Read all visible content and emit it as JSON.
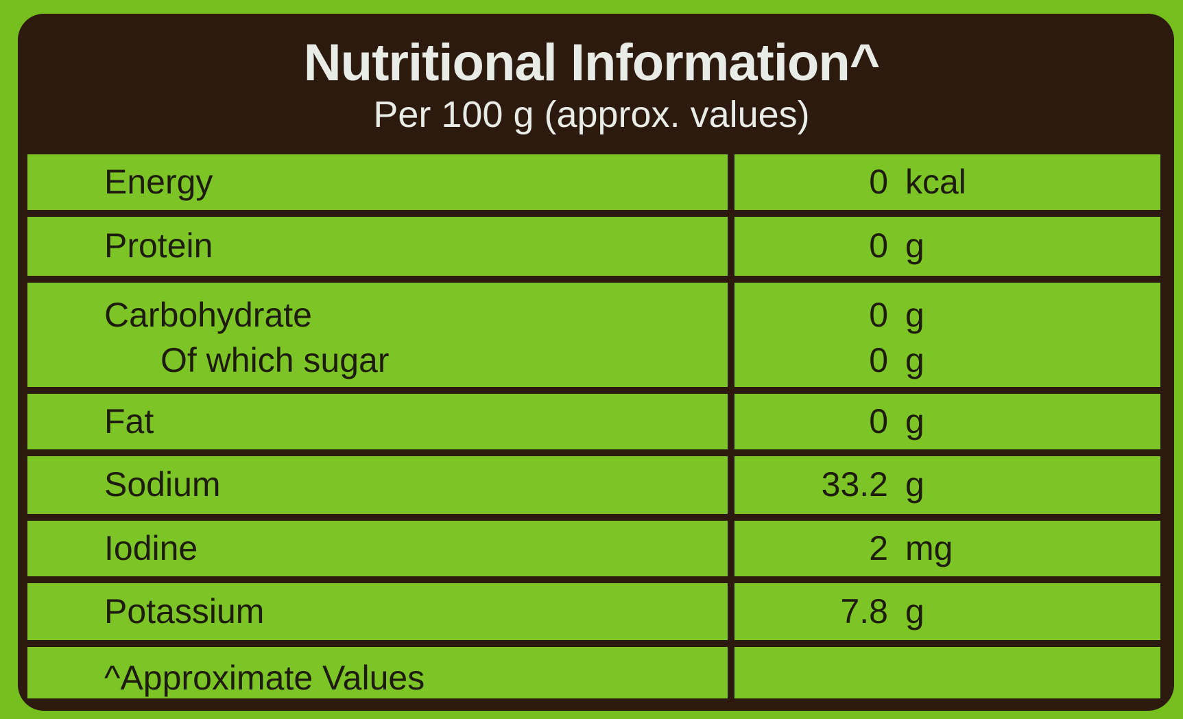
{
  "header": {
    "title": "Nutritional Information^",
    "subtitle": "Per 100 g (approx. values)"
  },
  "table": {
    "rows": [
      {
        "name": "Energy",
        "amount": 0,
        "unit": "kcal"
      },
      {
        "name": "Protein",
        "amount": 0,
        "unit": "g"
      },
      {
        "name": "Carbohydrate",
        "amount": 0,
        "unit": "g",
        "sub": {
          "name": "Of which sugar",
          "amount": 0,
          "unit": "g"
        }
      },
      {
        "name": "Fat",
        "amount": 0,
        "unit": "g"
      },
      {
        "name": "Sodium",
        "amount": 33.2,
        "unit": "g"
      },
      {
        "name": "Iodine",
        "amount": 2,
        "unit": "mg"
      },
      {
        "name": "Potassium",
        "amount": 7.8,
        "unit": "g"
      }
    ],
    "footnote": "^Approximate Values"
  }
}
